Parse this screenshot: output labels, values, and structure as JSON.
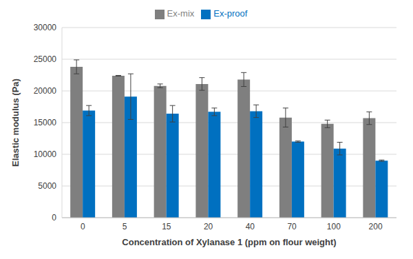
{
  "chart_data": {
    "type": "bar",
    "x_label": "Concentration of Xylanase 1 (ppm on flour weight)",
    "y_label": "Elastic modulus (Pa)",
    "categories": [
      "0",
      "5",
      "15",
      "20",
      "40",
      "70",
      "100",
      "200"
    ],
    "series": [
      {
        "name": "Ex-mix",
        "color": "#7f7f7f",
        "values": [
          23800,
          22400,
          20800,
          21100,
          21800,
          15800,
          14800,
          15700
        ],
        "errors": [
          1100,
          50,
          300,
          1000,
          1100,
          1500,
          600,
          1000
        ]
      },
      {
        "name": "Ex-proof",
        "color": "#0070c0",
        "values": [
          16900,
          19100,
          16400,
          16700,
          16800,
          12000,
          10900,
          9000
        ],
        "errors": [
          800,
          3600,
          1300,
          600,
          1000,
          100,
          1000,
          100
        ]
      }
    ],
    "ylim": [
      0,
      30000
    ],
    "yticks": [
      0,
      5000,
      10000,
      15000,
      20000,
      25000,
      30000
    ],
    "grid": true,
    "legend": "top"
  }
}
